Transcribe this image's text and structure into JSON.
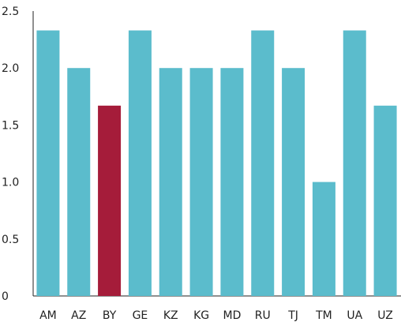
{
  "chart_data": {
    "type": "bar",
    "categories": [
      "AM",
      "AZ",
      "BY",
      "GE",
      "KZ",
      "KG",
      "MD",
      "RU",
      "TJ",
      "TM",
      "UA",
      "UZ"
    ],
    "values": [
      2.33,
      2.0,
      1.67,
      2.33,
      2.0,
      2.0,
      2.0,
      2.33,
      2.0,
      1.0,
      2.33,
      1.67
    ],
    "highlight_category": "BY",
    "ylim": [
      0,
      2.5
    ],
    "yticks": [
      {
        "value": 0,
        "label": "0"
      },
      {
        "value": 0.5,
        "label": "0.5"
      },
      {
        "value": 1.0,
        "label": "1.0"
      },
      {
        "value": 1.5,
        "label": "1.5"
      },
      {
        "value": 2.0,
        "label": "2.0"
      },
      {
        "value": 2.5,
        "label": "2.5"
      }
    ],
    "title": "",
    "xlabel": "",
    "ylabel": "",
    "grid": false,
    "legend": "none",
    "colors": {
      "bar": "#5bbccc",
      "highlight": "#a51c3a",
      "axis": "#222222"
    }
  }
}
